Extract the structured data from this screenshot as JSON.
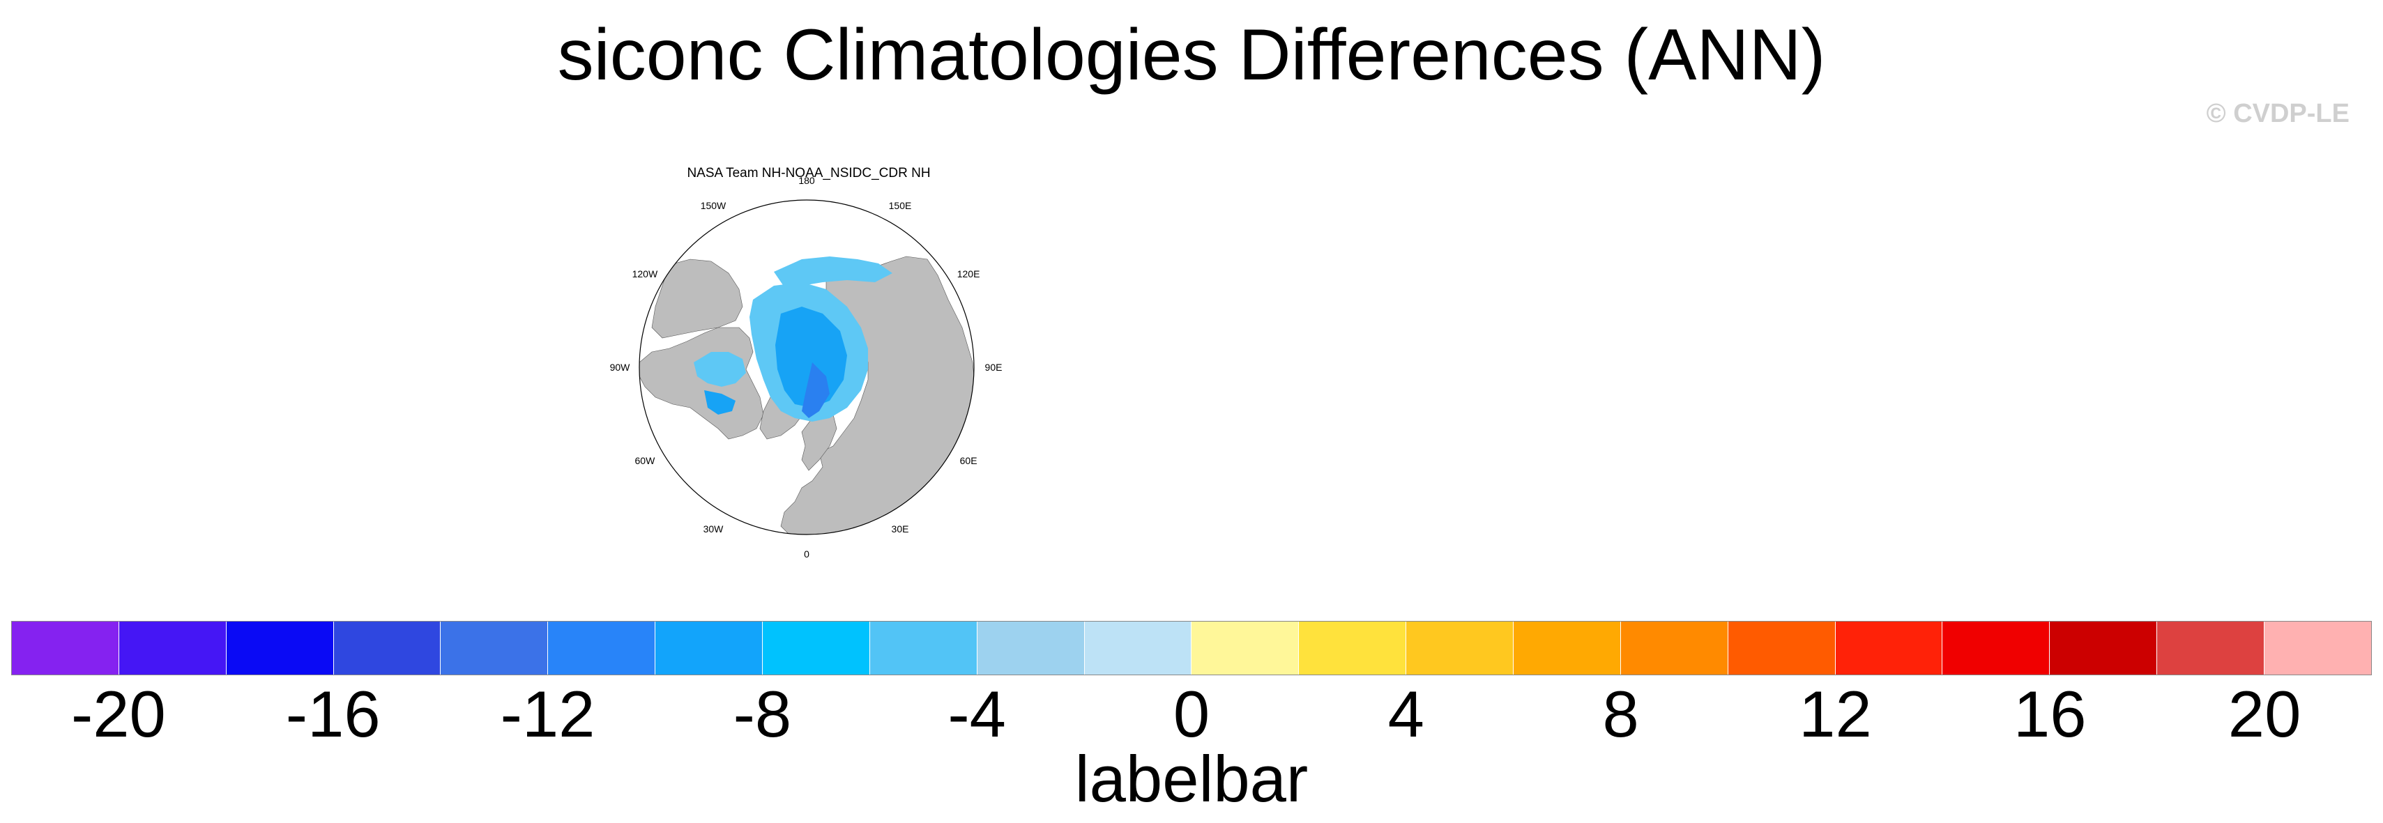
{
  "title": "siconc Climatologies Differences (ANN)",
  "credit": "© CVDP-LE",
  "panel": {
    "title": "NASA Team NH-NOAA_NSIDC_CDR NH",
    "projection": "north-polar-stereographic",
    "longitude_labels": [
      "180",
      "150E",
      "120E",
      "90E",
      "60E",
      "30E",
      "0",
      "30W",
      "60W",
      "90W",
      "120W",
      "150W"
    ],
    "colors": {
      "land": "#bdbdbd",
      "ocean": "#ffffff",
      "ice_diff_light": "#5ec8f5",
      "ice_diff_mid": "#17a3f5",
      "ice_diff_strong": "#2a80f0"
    }
  },
  "labelbar": {
    "caption": "labelbar",
    "colors": [
      "#8522f0",
      "#4516f5",
      "#0a0af5",
      "#2f47e0",
      "#3b72e8",
      "#2884f9",
      "#12a4fb",
      "#00c2fe",
      "#52c4f6",
      "#9dd2ef",
      "#bde2f6",
      "#fff799",
      "#ffe23c",
      "#ffc81f",
      "#ffa902",
      "#ff8a00",
      "#ff5b00",
      "#ff2208",
      "#f00000",
      "#cc0000",
      "#dd4140",
      "#ffb1b1"
    ],
    "tick_labels": [
      "-20",
      "-16",
      "-12",
      "-8",
      "-4",
      "0",
      "4",
      "8",
      "12",
      "16",
      "20"
    ],
    "min": -22,
    "max": 22,
    "step": 2
  }
}
